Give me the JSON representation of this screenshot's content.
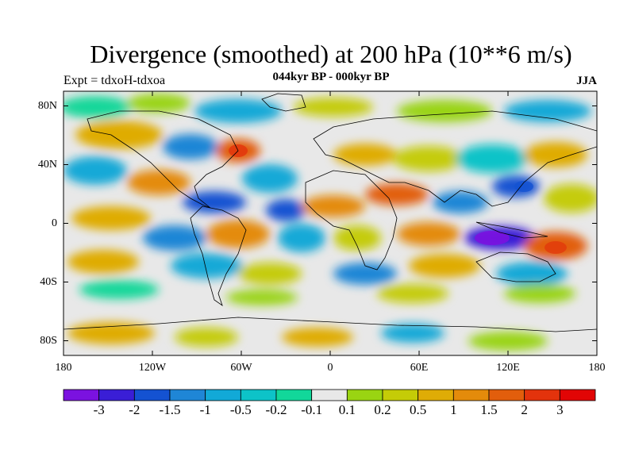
{
  "plot": {
    "title": "Divergence (smoothed) at 200 hPa (10**6 m/s)",
    "subtitle": "044kyr BP - 000kyr BP",
    "left_label": "Expt = tdxoH-tdxoa",
    "right_label": "JJA"
  },
  "axes": {
    "lat_ticks": [
      "80N",
      "40N",
      "0",
      "40S",
      "80S"
    ],
    "lat_values": [
      80,
      40,
      0,
      -40,
      -80
    ],
    "lon_ticks": [
      "180",
      "120W",
      "60W",
      "0",
      "60E",
      "120E",
      "180"
    ],
    "lon_values": [
      -180,
      -120,
      -60,
      0,
      60,
      120,
      180
    ],
    "lat_range": [
      -90,
      90
    ],
    "lon_range": [
      -180,
      180
    ]
  },
  "colorbar": {
    "labels": [
      "-3",
      "-2",
      "-1.5",
      "-1",
      "-0.5",
      "-0.2",
      "-0.1",
      "0.1",
      "0.2",
      "0.5",
      "1",
      "1.5",
      "2",
      "3"
    ],
    "colors": [
      "#7b12e0",
      "#3a1ed6",
      "#1452d2",
      "#1f86d6",
      "#12a9d7",
      "#0dc3c8",
      "#12d79a",
      "#e8e8e8",
      "#9ad412",
      "#c5cc07",
      "#dfac06",
      "#e48b0b",
      "#e25e0c",
      "#e3330c",
      "#e10505"
    ]
  },
  "colors": {
    "land_outline": "#000000",
    "frame": "#000000"
  }
}
